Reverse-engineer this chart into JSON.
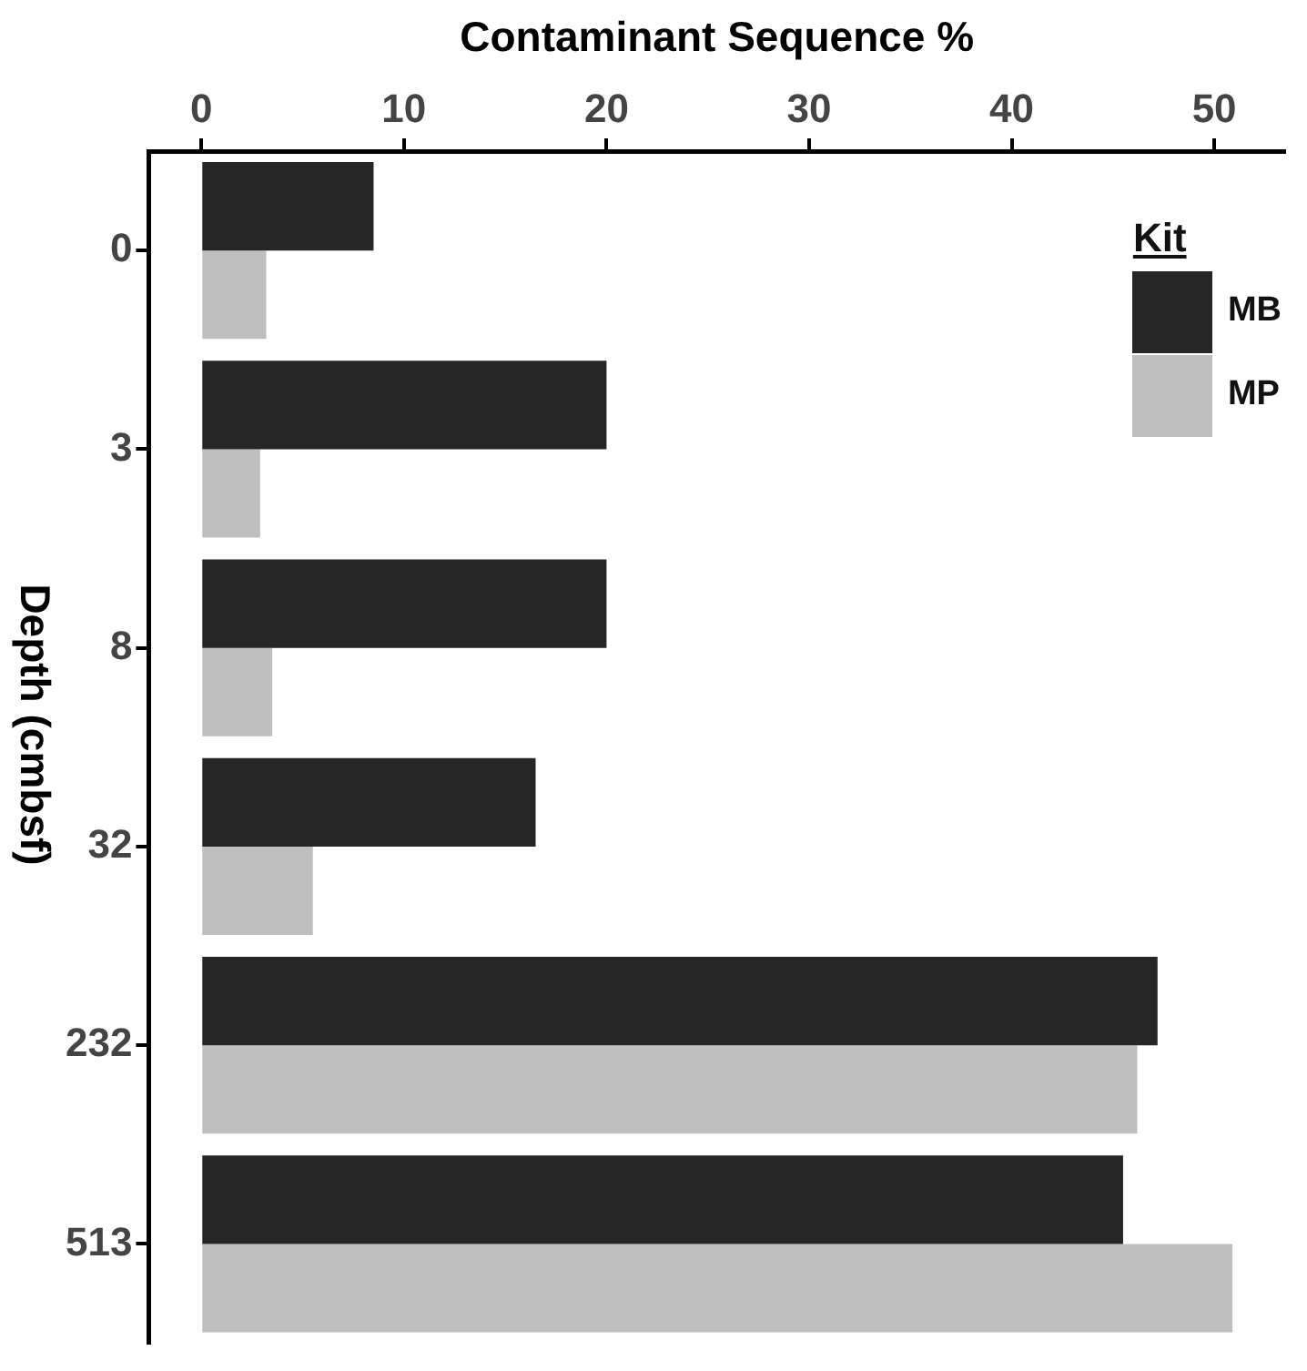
{
  "chart_data": {
    "type": "bar",
    "orientation": "horizontal",
    "xlabel": "Contaminant Sequence %",
    "ylabel": "Depth (cmbsf)",
    "legend_title": "Kit",
    "legend": "top right",
    "grid": false,
    "categories": [
      "0",
      "3",
      "8",
      "32",
      "232",
      "513"
    ],
    "series": [
      {
        "name": "MB",
        "color": "#262626",
        "values": [
          8.5,
          20,
          20,
          16.5,
          47.2,
          45.5
        ]
      },
      {
        "name": "MP",
        "color": "#bfbfbf",
        "values": [
          3.2,
          2.9,
          3.5,
          5.5,
          46.2,
          50.9
        ]
      }
    ],
    "xlim": [
      -2.6,
      53.5
    ],
    "xticks": [
      0,
      10,
      20,
      30,
      40,
      50
    ]
  }
}
